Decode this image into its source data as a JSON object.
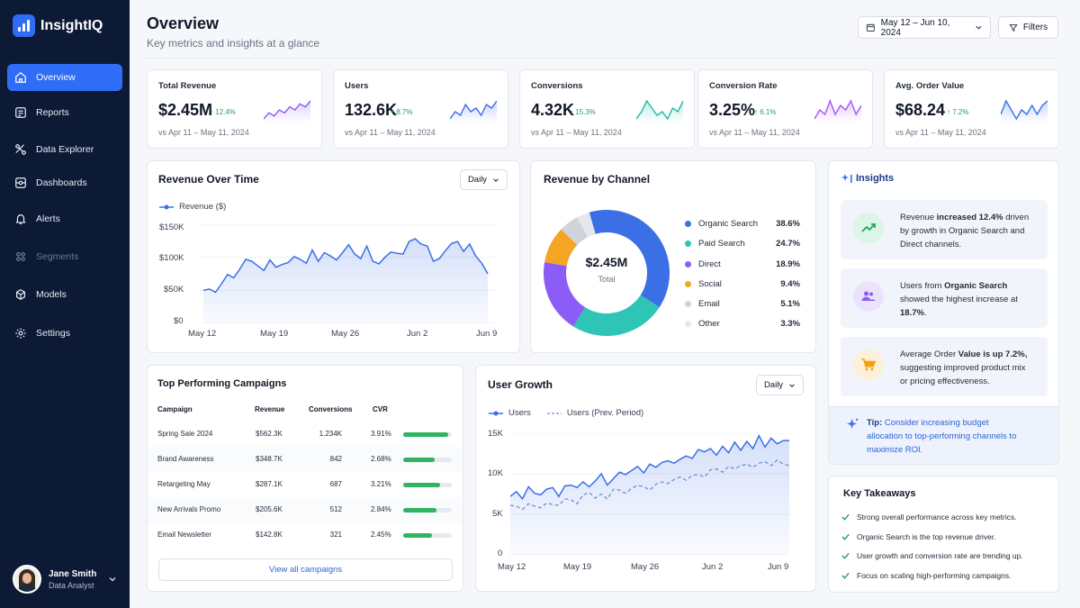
{
  "app": {
    "name": "InsightIQ"
  },
  "sidebar": {
    "items": [
      {
        "label": "Overview",
        "icon": "home-icon",
        "active": true
      },
      {
        "label": "Reports",
        "icon": "reports-icon"
      },
      {
        "label": "Data Explorer",
        "icon": "data-explorer-icon"
      },
      {
        "label": "Dashboards",
        "icon": "dashboards-icon"
      },
      {
        "label": "Alerts",
        "icon": "bell-icon"
      },
      {
        "label": "Segments",
        "icon": "segments-icon",
        "disabled": true
      },
      {
        "label": "Models",
        "icon": "models-icon"
      },
      {
        "label": "Settings",
        "icon": "gear-icon"
      }
    ],
    "user": {
      "name": "Jane Smith",
      "role": "Data Analyst"
    }
  },
  "header": {
    "title": "Overview",
    "subtitle": "Key metrics and insights at a glance",
    "date_range": "May 12 – Jun 10, 2024",
    "filters_label": "Filters"
  },
  "kpis": [
    {
      "title": "Total Revenue",
      "value": "$2.45M",
      "delta": "12.4%",
      "compare": "vs Apr 11 – May 11, 2024",
      "color": "#8b5cf6",
      "spark": [
        3,
        5,
        4,
        6,
        5,
        7,
        6,
        8,
        7,
        9
      ]
    },
    {
      "title": "Users",
      "value": "132.6K",
      "delta": "8.7%",
      "compare": "vs Apr 11 – May 11, 2024",
      "color": "#3b6fe6",
      "spark": [
        4,
        6,
        5,
        8,
        6,
        7,
        5,
        8,
        7,
        9
      ]
    },
    {
      "title": "Conversions",
      "value": "4.32K",
      "delta": "15.3%",
      "compare": "vs Apr 11 – May 11, 2024",
      "color": "#22b8a0",
      "spark": [
        3,
        5,
        8,
        6,
        4,
        5,
        3,
        6,
        5,
        8
      ]
    },
    {
      "title": "Conversion Rate",
      "value": "3.25%",
      "delta": "6.1%",
      "compare": "vs Apr 11 – May 11, 2024",
      "color": "#a855f7",
      "spark": [
        4,
        6,
        5,
        8,
        5,
        7,
        6,
        8,
        5,
        7
      ]
    },
    {
      "title": "Avg. Order Value",
      "value": "$68.24",
      "delta": "7.2%",
      "compare": "vs Apr 11 – May 11, 2024",
      "color": "#3b6fe6",
      "spark": [
        5,
        8,
        6,
        4,
        6,
        5,
        7,
        5,
        7,
        8
      ]
    }
  ],
  "revenue_over_time": {
    "title": "Revenue Over Time",
    "granularity": "Daily",
    "legend": "Revenue ($)",
    "y_ticks": [
      "$150K",
      "$100K",
      "$50K",
      "$0"
    ],
    "x_ticks": [
      "May 12",
      "May 19",
      "May 26",
      "Jun 2",
      "Jun 9"
    ]
  },
  "revenue_by_channel": {
    "title": "Revenue by Channel",
    "center_value": "$2.45M",
    "center_label": "Total",
    "channels": [
      {
        "name": "Organic Search",
        "pct": "38.6%",
        "value": 38.6,
        "color": "#3b6fe6"
      },
      {
        "name": "Paid Search",
        "pct": "24.7%",
        "value": 24.7,
        "color": "#2ec4b6"
      },
      {
        "name": "Direct",
        "pct": "18.9%",
        "value": 18.9,
        "color": "#8b5cf6"
      },
      {
        "name": "Social",
        "pct": "9.4%",
        "value": 9.4,
        "color": "#f5a524"
      },
      {
        "name": "Email",
        "pct": "5.1%",
        "value": 5.1,
        "color": "#cfd3da"
      },
      {
        "name": "Other",
        "pct": "3.3%",
        "value": 3.3,
        "color": "#e5e7eb"
      }
    ]
  },
  "insights": {
    "title": "Insights",
    "items": [
      {
        "icon": "trend-up-icon",
        "pre": "Revenue ",
        "bold": "increased 12.4%",
        "post": " driven by growth in Organic Search and Direct channels."
      },
      {
        "icon": "users-icon",
        "pre": "Users from ",
        "bold": "Organic Search",
        "post": " showed the highest increase at ",
        "bold2": "18.7%",
        "post2": "."
      },
      {
        "icon": "cart-icon",
        "pre": "Average Order ",
        "bold": "Value is up 7.2%,",
        "post": " suggesting improved product mix or pricing effectiveness."
      }
    ],
    "tip_label": "Tip:",
    "tip_text": " Consider increasing budget allocation to top-performing channels to maximize ROI."
  },
  "campaigns": {
    "title": "Top Performing Campaigns",
    "columns": [
      "Campaign",
      "Revenue",
      "Conversions",
      "CVR"
    ],
    "rows": [
      {
        "name": "Spring Sale 2024",
        "revenue": "$562.3K",
        "conversions": "1.234K",
        "cvr": "3.91%",
        "cvr_value": 3.91
      },
      {
        "name": "Brand Awareness",
        "revenue": "$348.7K",
        "conversions": "842",
        "cvr": "2.68%",
        "cvr_value": 2.68
      },
      {
        "name": "Retargeting May",
        "revenue": "$287.1K",
        "conversions": "687",
        "cvr": "3.21%",
        "cvr_value": 3.21
      },
      {
        "name": "New Arrivals Promo",
        "revenue": "$205.6K",
        "conversions": "512",
        "cvr": "2.84%",
        "cvr_value": 2.84
      },
      {
        "name": "Email Newsletter",
        "revenue": "$142.8K",
        "conversions": "321",
        "cvr": "2.45%",
        "cvr_value": 2.45
      }
    ],
    "view_all": "View all campaigns"
  },
  "user_growth": {
    "title": "User Growth",
    "granularity": "Daily",
    "legend_current": "Users",
    "legend_previous": "Users (Prev. Period)",
    "y_ticks": [
      "15K",
      "10K",
      "5K",
      "0"
    ],
    "x_ticks": [
      "May 12",
      "May 19",
      "May 26",
      "Jun 2",
      "Jun 9"
    ]
  },
  "takeaways": {
    "title": "Key Takeaways",
    "items": [
      "Strong overall performance across key metrics.",
      "Organic Search is the top revenue driver.",
      "User growth and conversion rate are trending up.",
      "Focus on scaling high-performing campaigns."
    ]
  },
  "chart_data": [
    {
      "type": "area",
      "title": "Revenue Over Time",
      "series": [
        {
          "name": "Revenue ($)",
          "values": [
            50,
            52,
            47,
            60,
            74,
            69,
            82,
            97,
            94,
            87,
            80,
            96,
            85,
            89,
            92,
            101,
            97,
            91,
            111,
            94,
            107,
            102,
            96,
            107,
            119,
            105,
            98,
            117,
            94,
            90,
            100,
            108,
            106,
            105,
            124,
            128,
            120,
            117,
            94,
            98,
            110,
            121,
            124,
            109,
            120,
            102,
            91,
            75
          ]
        }
      ],
      "x_ticks": [
        "May 12",
        "May 19",
        "May 26",
        "Jun 2",
        "Jun 9"
      ],
      "ylim": [
        0,
        150
      ],
      "y_ticks": [
        "$150K",
        "$100K",
        "$50K",
        "$0"
      ]
    },
    {
      "type": "pie",
      "title": "Revenue by Channel",
      "categories": [
        "Organic Search",
        "Paid Search",
        "Direct",
        "Social",
        "Email",
        "Other"
      ],
      "values": [
        38.6,
        24.7,
        18.9,
        9.4,
        5.1,
        3.3
      ]
    },
    {
      "type": "line",
      "title": "User Growth",
      "series": [
        {
          "name": "Users",
          "values": [
            7.2,
            7.8,
            6.9,
            8.4,
            7.6,
            7.4,
            8.1,
            8.3,
            7.2,
            8.5,
            8.6,
            8.3,
            9.0,
            8.4,
            9.1,
            10.0,
            8.6,
            9.4,
            10.2,
            9.9,
            10.4,
            10.9,
            10.1,
            11.2,
            10.8,
            11.4,
            11.6,
            11.3,
            11.8,
            12.2,
            11.9,
            13.0,
            12.7,
            13.1,
            12.3,
            13.4,
            12.6,
            13.9,
            12.9,
            14.0,
            13.1,
            14.7,
            13.3,
            14.4,
            13.7,
            14.1,
            14.1
          ]
        },
        {
          "name": "Users (Prev. Period)",
          "values": [
            6.1,
            6.0,
            5.6,
            6.3,
            6.0,
            5.8,
            6.4,
            6.2,
            6.1,
            6.9,
            6.8,
            6.3,
            7.4,
            7.7,
            7.0,
            7.5,
            6.9,
            8.1,
            8.0,
            7.6,
            8.2,
            8.6,
            8.4,
            8.0,
            8.7,
            9.0,
            8.8,
            9.3,
            9.6,
            9.2,
            9.8,
            9.9,
            9.6,
            10.5,
            10.6,
            10.2,
            10.9,
            10.6,
            11.0,
            11.2,
            10.8,
            11.3,
            11.5,
            11.0,
            11.7,
            11.2,
            11.0
          ]
        }
      ],
      "x_ticks": [
        "May 12",
        "May 19",
        "May 26",
        "Jun 2",
        "Jun 9"
      ],
      "ylim": [
        0,
        15
      ],
      "y_ticks": [
        "15K",
        "10K",
        "5K",
        "0"
      ]
    }
  ]
}
